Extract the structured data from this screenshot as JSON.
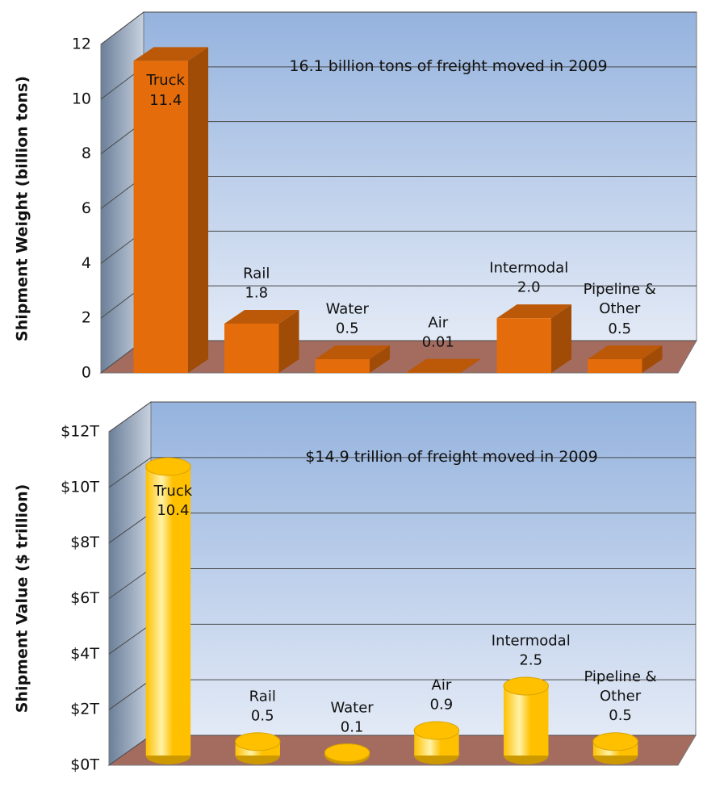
{
  "chart_data": [
    {
      "type": "bar",
      "bar_shape": "box",
      "color": "#e46c0a",
      "y_label": "Shipment Weight (billion tons)",
      "annotation": "16.1 billion tons of freight moved in 2009",
      "categories": [
        "Truck",
        "Rail",
        "Water",
        "Air",
        "Intermodal",
        "Pipeline & Other"
      ],
      "values": [
        11.4,
        1.8,
        0.5,
        0.01,
        2.0,
        0.5
      ],
      "value_labels": [
        "11.4",
        "1.8",
        "0.5",
        "0.01",
        "2.0",
        "0.5"
      ],
      "ylim": [
        0,
        12
      ],
      "yticks": [
        0,
        2,
        4,
        6,
        8,
        10,
        12
      ],
      "grid": true
    },
    {
      "type": "bar",
      "bar_shape": "cylinder",
      "color": "#ffc000",
      "y_label": "Shipment Value ($ trillion)",
      "annotation": "$14.9 trillion of freight moved in 2009",
      "categories": [
        "Truck",
        "Rail",
        "Water",
        "Air",
        "Intermodal",
        "Pipeline & Other"
      ],
      "values": [
        10.4,
        0.5,
        0.1,
        0.9,
        2.5,
        0.5
      ],
      "ylim": [
        0,
        12
      ],
      "yticks": [
        {
          "value": 0,
          "label": "$0T"
        },
        {
          "value": 2,
          "label": "$2T"
        },
        {
          "value": 4,
          "label": "$4T"
        },
        {
          "value": 6,
          "label": "$6T"
        },
        {
          "value": 8,
          "label": "$8T"
        },
        {
          "value": 10,
          "label": "$10T"
        },
        {
          "value": 12,
          "label": "$12T"
        }
      ],
      "grid": true
    }
  ]
}
